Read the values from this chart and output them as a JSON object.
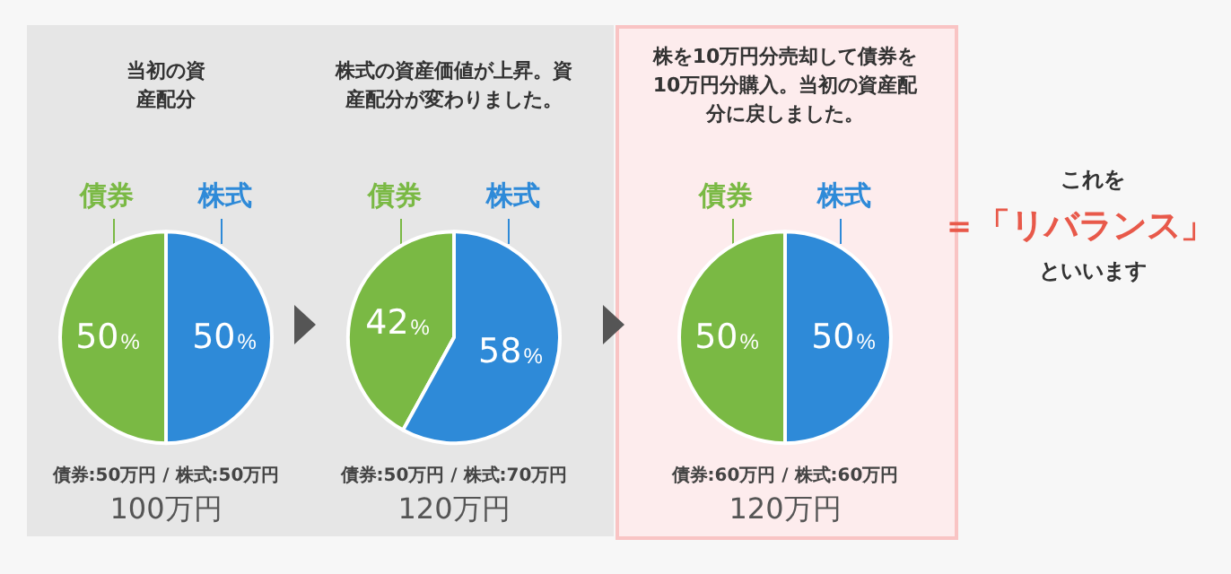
{
  "chart_data": [
    {
      "type": "pie",
      "title": "当初の資産配分",
      "categories": [
        "債券",
        "株式"
      ],
      "values": [
        50,
        50
      ],
      "colors": [
        "#7ab944",
        "#2e8ad8"
      ],
      "value_labels": [
        "50%",
        "50%"
      ],
      "annotations": [
        "債券:50万円 / 株式:50万円",
        "100万円"
      ]
    },
    {
      "type": "pie",
      "title": "株式の資産価値が上昇。資産配分が変わりました。",
      "categories": [
        "債券",
        "株式"
      ],
      "values": [
        42,
        58
      ],
      "colors": [
        "#7ab944",
        "#2e8ad8"
      ],
      "value_labels": [
        "42%",
        "58%"
      ],
      "annotations": [
        "債券:50万円 / 株式:70万円",
        "120万円"
      ]
    },
    {
      "type": "pie",
      "title": "株を10万円分売却して債券を10万円分購入。当初の資産配分に戻しました。",
      "categories": [
        "債券",
        "株式"
      ],
      "values": [
        50,
        50
      ],
      "colors": [
        "#7ab944",
        "#2e8ad8"
      ],
      "value_labels": [
        "50%",
        "50%"
      ],
      "annotations": [
        "債券:60万円 / 株式:60万円",
        "120万円"
      ]
    },
    {
      "type": "other",
      "annotations": [
        "これを",
        "＝「リバランス」",
        "といいます"
      ]
    }
  ]
}
